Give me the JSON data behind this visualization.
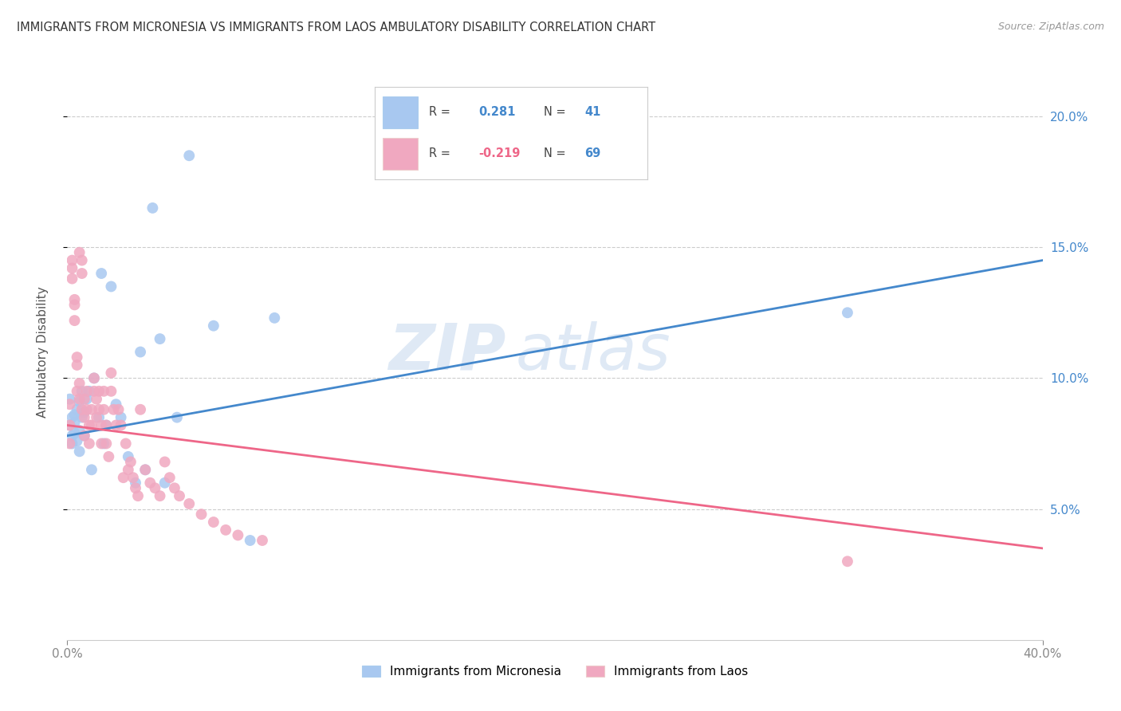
{
  "title": "IMMIGRANTS FROM MICRONESIA VS IMMIGRANTS FROM LAOS AMBULATORY DISABILITY CORRELATION CHART",
  "source": "Source: ZipAtlas.com",
  "ylabel": "Ambulatory Disability",
  "xlim": [
    0.0,
    0.4
  ],
  "ylim": [
    0.0,
    0.22
  ],
  "xticks": [
    0.0,
    0.4
  ],
  "xticklabels": [
    "0.0%",
    "40.0%"
  ],
  "yticks": [
    0.05,
    0.1,
    0.15,
    0.2
  ],
  "right_yticklabels": [
    "5.0%",
    "10.0%",
    "15.0%",
    "20.0%"
  ],
  "micronesia_R": 0.281,
  "micronesia_N": 41,
  "laos_R": -0.219,
  "laos_N": 69,
  "micronesia_color": "#a8c8f0",
  "laos_color": "#f0a8c0",
  "micronesia_line_color": "#4488cc",
  "laos_line_color": "#ee6688",
  "legend_micronesia": "Immigrants from Micronesia",
  "legend_laos": "Immigrants from Laos",
  "watermark_zip": "ZIP",
  "watermark_atlas": "atlas",
  "background_color": "#ffffff",
  "grid_color": "#cccccc",
  "mic_line_x0": 0.0,
  "mic_line_y0": 0.078,
  "mic_line_x1": 0.4,
  "mic_line_y1": 0.145,
  "laos_line_x0": 0.0,
  "laos_line_y0": 0.082,
  "laos_line_x1": 0.4,
  "laos_line_y1": 0.035,
  "micronesia_x": [
    0.001,
    0.001,
    0.002,
    0.002,
    0.002,
    0.003,
    0.003,
    0.003,
    0.004,
    0.004,
    0.005,
    0.005,
    0.005,
    0.006,
    0.006,
    0.007,
    0.007,
    0.008,
    0.009,
    0.01,
    0.011,
    0.013,
    0.014,
    0.015,
    0.016,
    0.018,
    0.02,
    0.022,
    0.025,
    0.028,
    0.03,
    0.032,
    0.035,
    0.038,
    0.04,
    0.045,
    0.05,
    0.06,
    0.075,
    0.085,
    0.32
  ],
  "micronesia_y": [
    0.082,
    0.092,
    0.075,
    0.085,
    0.078,
    0.086,
    0.079,
    0.083,
    0.088,
    0.076,
    0.091,
    0.08,
    0.072,
    0.085,
    0.095,
    0.087,
    0.078,
    0.092,
    0.095,
    0.065,
    0.1,
    0.085,
    0.14,
    0.075,
    0.082,
    0.135,
    0.09,
    0.085,
    0.07,
    0.06,
    0.11,
    0.065,
    0.165,
    0.115,
    0.06,
    0.085,
    0.185,
    0.12,
    0.038,
    0.123,
    0.125
  ],
  "laos_x": [
    0.001,
    0.001,
    0.001,
    0.002,
    0.002,
    0.002,
    0.003,
    0.003,
    0.003,
    0.004,
    0.004,
    0.004,
    0.005,
    0.005,
    0.005,
    0.006,
    0.006,
    0.006,
    0.007,
    0.007,
    0.007,
    0.008,
    0.008,
    0.009,
    0.009,
    0.01,
    0.01,
    0.011,
    0.011,
    0.012,
    0.012,
    0.013,
    0.013,
    0.014,
    0.014,
    0.015,
    0.015,
    0.016,
    0.016,
    0.017,
    0.018,
    0.018,
    0.019,
    0.02,
    0.021,
    0.022,
    0.023,
    0.024,
    0.025,
    0.026,
    0.027,
    0.028,
    0.029,
    0.03,
    0.032,
    0.034,
    0.036,
    0.038,
    0.04,
    0.042,
    0.044,
    0.046,
    0.05,
    0.055,
    0.06,
    0.065,
    0.07,
    0.08,
    0.32
  ],
  "laos_y": [
    0.09,
    0.082,
    0.075,
    0.142,
    0.145,
    0.138,
    0.13,
    0.128,
    0.122,
    0.105,
    0.108,
    0.095,
    0.098,
    0.092,
    0.148,
    0.145,
    0.14,
    0.088,
    0.092,
    0.085,
    0.078,
    0.095,
    0.088,
    0.082,
    0.075,
    0.088,
    0.082,
    0.095,
    0.1,
    0.092,
    0.085,
    0.095,
    0.088,
    0.082,
    0.075,
    0.095,
    0.088,
    0.082,
    0.075,
    0.07,
    0.102,
    0.095,
    0.088,
    0.082,
    0.088,
    0.082,
    0.062,
    0.075,
    0.065,
    0.068,
    0.062,
    0.058,
    0.055,
    0.088,
    0.065,
    0.06,
    0.058,
    0.055,
    0.068,
    0.062,
    0.058,
    0.055,
    0.052,
    0.048,
    0.045,
    0.042,
    0.04,
    0.038,
    0.03
  ]
}
